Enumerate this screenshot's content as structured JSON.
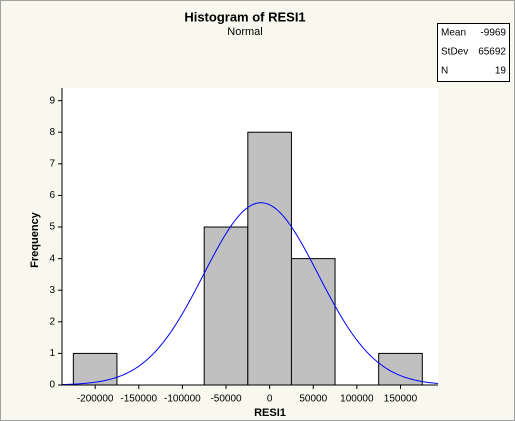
{
  "chart_data": {
    "type": "histogram",
    "title": "Histogram of RESI1",
    "subtitle": "Normal",
    "xlabel": "RESI1",
    "ylabel": "Frequency",
    "bins": [
      -225000,
      -175000,
      -125000,
      -75000,
      -25000,
      25000,
      75000,
      125000,
      175000
    ],
    "counts": [
      1,
      0,
      0,
      5,
      8,
      4,
      0,
      1
    ],
    "color": "#c0c0c0",
    "curve_color": "#0000ff",
    "xlim": [
      -238000,
      193000
    ],
    "xticks": [
      -200000,
      -150000,
      -100000,
      -50000,
      0,
      50000,
      100000,
      150000
    ],
    "ylim": [
      0,
      9.4
    ],
    "yticks": [
      0,
      1,
      2,
      3,
      4,
      5,
      6,
      7,
      8,
      9
    ],
    "stats": [
      {
        "label": "Mean",
        "value": -9969
      },
      {
        "label": "StDev",
        "value": 65692
      },
      {
        "label": "N",
        "value": 19
      }
    ]
  }
}
